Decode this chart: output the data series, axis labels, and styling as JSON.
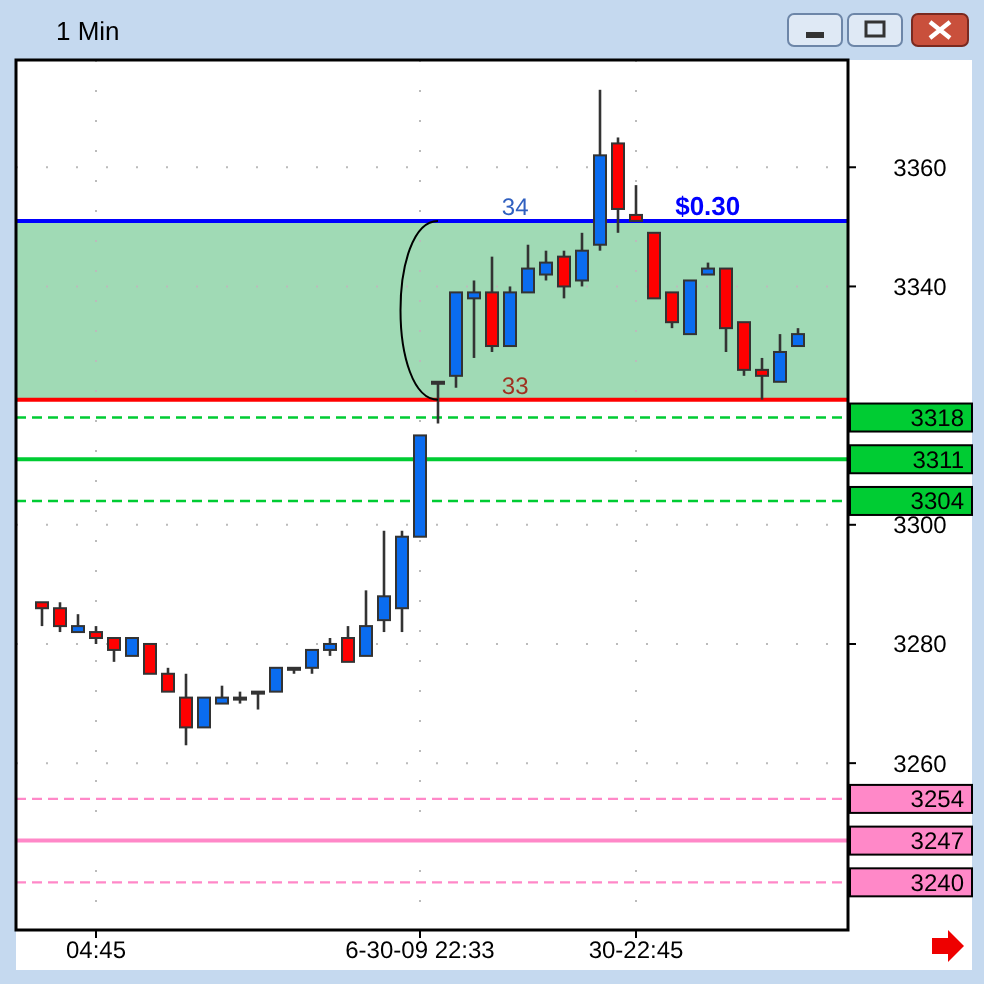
{
  "chart_data": {
    "type": "candlestick",
    "title": "1 Min",
    "categories": [
      null,
      null,
      null,
      "04:45",
      null,
      null,
      null,
      null,
      null,
      null,
      null,
      null,
      null,
      null,
      null,
      null,
      null,
      null,
      null,
      null,
      null,
      "6-30-09 22:33",
      null,
      null,
      null,
      null,
      null,
      null,
      null,
      null,
      null,
      null,
      null,
      "30-22:45",
      null,
      null,
      null,
      null,
      null,
      null,
      null,
      null,
      null
    ],
    "ohlc": [
      [
        3287,
        3287,
        3283,
        3286
      ],
      [
        3286,
        3287,
        3282,
        3283
      ],
      [
        3282,
        3285,
        3282,
        3283
      ],
      [
        3282,
        3283,
        3280,
        3281
      ],
      [
        3281,
        3281,
        3277,
        3279
      ],
      [
        3278,
        3281,
        3278,
        3281
      ],
      [
        3280,
        3280,
        3275,
        3275
      ],
      [
        3275,
        3276,
        3272,
        3272
      ],
      [
        3271,
        3275,
        3263,
        3266
      ],
      [
        3266,
        3271,
        3266,
        3271
      ],
      [
        3270,
        3273,
        3270,
        3271
      ],
      [
        3271,
        3272,
        3270,
        3271
      ],
      [
        3272,
        3272,
        3269,
        3272
      ],
      [
        3272,
        3276,
        3272,
        3276
      ],
      [
        3276,
        3276,
        3275,
        3276
      ],
      [
        3276,
        3279,
        3275,
        3279
      ],
      [
        3279,
        3281,
        3278,
        3280
      ],
      [
        3281,
        3283,
        3277,
        3277
      ],
      [
        3278,
        3289,
        3278,
        3283
      ],
      [
        3284,
        3299,
        3282,
        3288
      ],
      [
        3286,
        3299,
        3282,
        3298
      ],
      [
        3298,
        3315,
        3298,
        3315
      ],
      [
        3324,
        3324,
        3317,
        3324
      ],
      [
        3325,
        3339,
        3323,
        3339
      ],
      [
        3338,
        3341,
        3328,
        3339
      ],
      [
        3339,
        3345,
        3329,
        3330
      ],
      [
        3330,
        3340,
        3330,
        3339
      ],
      [
        3339,
        3347,
        3339,
        3343
      ],
      [
        3342,
        3346,
        3341,
        3344
      ],
      [
        3345,
        3346,
        3338,
        3340
      ],
      [
        3341,
        3349,
        3340,
        3346
      ],
      [
        3347,
        3373,
        3346,
        3362
      ],
      [
        3364,
        3365,
        3349,
        3353
      ],
      [
        3352,
        3357,
        3351,
        3351
      ],
      [
        3349,
        3349,
        3338,
        3338
      ],
      [
        3339,
        3339,
        3333,
        3334
      ],
      [
        3332,
        3341,
        3332,
        3341
      ],
      [
        3342,
        3344,
        3342,
        3343
      ],
      [
        3343,
        3343,
        3329,
        3333
      ],
      [
        3334,
        3334,
        3325,
        3326
      ],
      [
        3326,
        3328,
        3321,
        3325
      ],
      [
        3324,
        3332,
        3324,
        3329
      ],
      [
        3330,
        3333,
        3330,
        3332
      ]
    ],
    "colors": [
      "#ff0000",
      "#ff0000",
      "#0a6cf0",
      "#ff0000",
      "#ff0000",
      "#0a6cf0",
      "#ff0000",
      "#ff0000",
      "#ff0000",
      "#0a6cf0",
      "#0a6cf0",
      "#333333",
      "#333333",
      "#0a6cf0",
      "#333333",
      "#0a6cf0",
      "#0a6cf0",
      "#ff0000",
      "#0a6cf0",
      "#0a6cf0",
      "#0a6cf0",
      "#0a6cf0",
      "#333333",
      "#0a6cf0",
      "#0a6cf0",
      "#ff0000",
      "#0a6cf0",
      "#0a6cf0",
      "#0a6cf0",
      "#ff0000",
      "#0a6cf0",
      "#0a6cf0",
      "#ff0000",
      "#ff0000",
      "#ff0000",
      "#ff0000",
      "#0a6cf0",
      "#0a6cf0",
      "#ff0000",
      "#ff0000",
      "#ff0000",
      "#0a6cf0",
      "#0a6cf0"
    ],
    "ylim": [
      3232,
      3378
    ],
    "yticks": [
      3260,
      3280,
      3300,
      3340,
      3360
    ],
    "grid": true,
    "bands": [
      {
        "axis": "y",
        "from": 3321,
        "to": 3351,
        "color": "#8fd4a8"
      }
    ],
    "ref_lines": [
      {
        "axis": "y",
        "value": 3351,
        "color": "#0000ff",
        "line_style": "solid"
      },
      {
        "axis": "y",
        "value": 3321,
        "color": "#ff0000",
        "line_style": "solid"
      },
      {
        "axis": "y",
        "value": 3318,
        "label": "3318",
        "color": "#00cc33",
        "line_style": "dashed"
      },
      {
        "axis": "y",
        "value": 3311,
        "label": "3311",
        "color": "#00cc33",
        "line_style": "solid"
      },
      {
        "axis": "y",
        "value": 3304,
        "label": "3304",
        "color": "#00cc33",
        "line_style": "dashed"
      },
      {
        "axis": "y",
        "value": 3254,
        "label": "3254",
        "color": "#ff88c8",
        "line_style": "dashed"
      },
      {
        "axis": "y",
        "value": 3247,
        "label": "3247",
        "color": "#ff88c8",
        "line_style": "solid"
      },
      {
        "axis": "y",
        "value": 3240,
        "label": "3240",
        "color": "#ff88c8",
        "line_style": "dashed"
      }
    ],
    "annotations": [
      {
        "text": "34",
        "y": 3351
      },
      {
        "text": "$0.30",
        "y": 3351
      },
      {
        "text": "33",
        "y": 3321
      }
    ]
  }
}
